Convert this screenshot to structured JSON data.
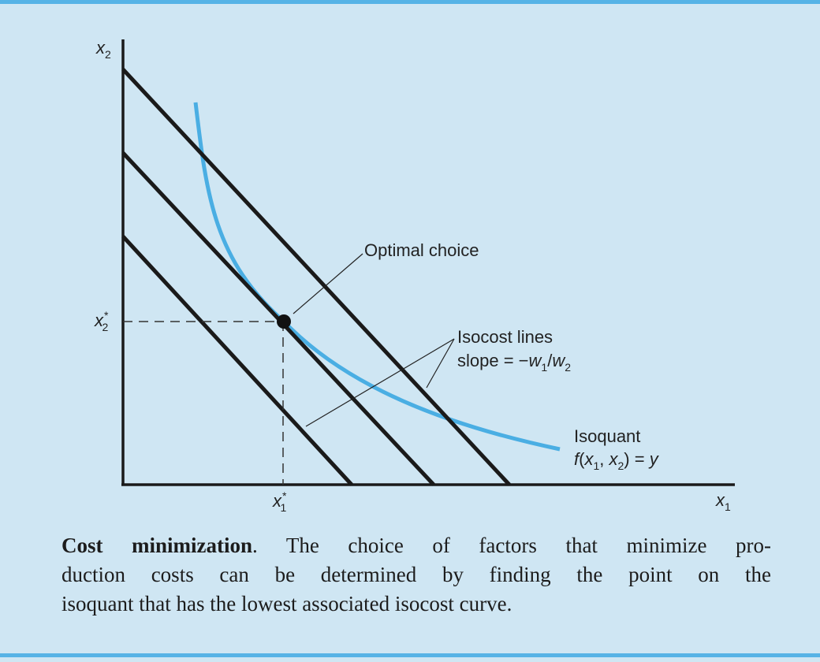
{
  "figure": {
    "axes": {
      "y_label": "x",
      "y_label_sub": "2",
      "x_label": "x",
      "x_label_sub": "1",
      "y_tick": "x",
      "y_tick_sup": "*",
      "y_tick_sub": "2",
      "x_tick": "x",
      "x_tick_sup": "*",
      "x_tick_sub": "1"
    },
    "labels": {
      "optimal_choice": "Optimal choice",
      "isocost_title": "Isocost lines",
      "isocost_slope_prefix": "slope = −",
      "isocost_w": "w",
      "isocost_sub1": "1",
      "isocost_slash": "/",
      "isocost_sub2": "2",
      "isoquant_title": "Isoquant",
      "isoquant_f": "f",
      "isoquant_open": "(",
      "isoquant_x": "x",
      "isoquant_sub1": "1",
      "isoquant_comma": ", ",
      "isoquant_sub2": "2",
      "isoquant_close": ") = ",
      "isoquant_y": "y"
    },
    "colors": {
      "isoquant": "#4aaee3",
      "lines": "#1a1a1a",
      "background": "#cfe6f3",
      "rule": "#56b3e6"
    }
  },
  "caption": {
    "title": "Cost minimization",
    "line1": ". The choice of factors that minimize pro-",
    "line2": "duction costs can be determined by finding the point on the",
    "line3": "isoquant that has the lowest associated isocost curve."
  }
}
